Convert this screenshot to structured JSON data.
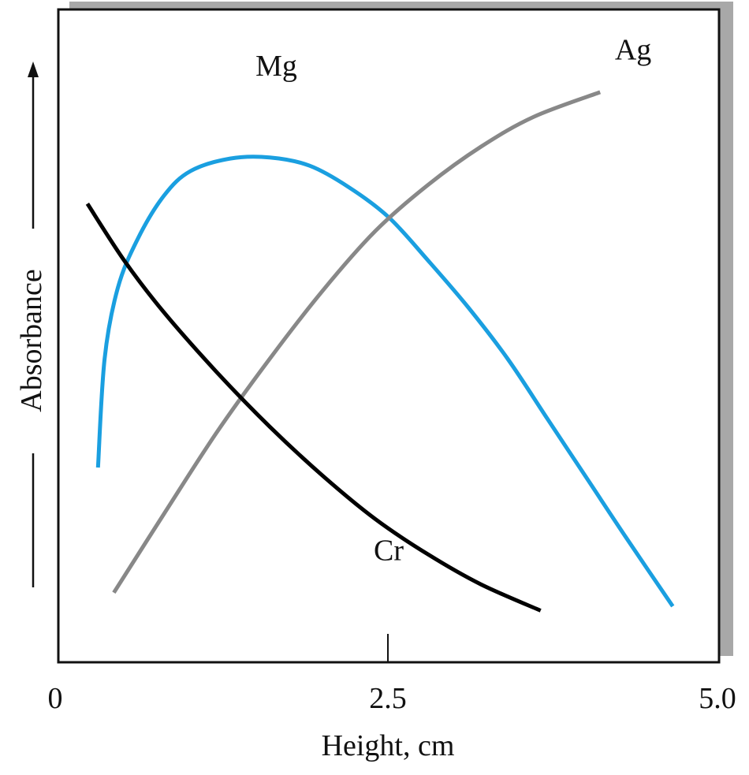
{
  "chart_data": {
    "type": "line",
    "xlabel": "Height, cm",
    "ylabel": "Absorbance",
    "xlim": [
      0,
      5.0
    ],
    "ylim": [
      0,
      1
    ],
    "x_ticks": [
      "0",
      "2.5",
      "5.0"
    ],
    "grid": false,
    "series": [
      {
        "name": "Mg",
        "color": "#1a9fe0",
        "points": [
          [
            0.3,
            0.3
          ],
          [
            0.35,
            0.5
          ],
          [
            0.45,
            0.63
          ],
          [
            0.6,
            0.72
          ],
          [
            0.8,
            0.8
          ],
          [
            1.0,
            0.845
          ],
          [
            1.3,
            0.868
          ],
          [
            1.6,
            0.87
          ],
          [
            1.9,
            0.855
          ],
          [
            2.2,
            0.815
          ],
          [
            2.5,
            0.76
          ],
          [
            2.8,
            0.68
          ],
          [
            3.1,
            0.595
          ],
          [
            3.4,
            0.5
          ],
          [
            3.7,
            0.39
          ],
          [
            4.0,
            0.28
          ],
          [
            4.3,
            0.17
          ],
          [
            4.65,
            0.045
          ]
        ]
      },
      {
        "name": "Ag",
        "color": "#888888",
        "points": [
          [
            0.42,
            0.07
          ],
          [
            0.8,
            0.215
          ],
          [
            1.2,
            0.365
          ],
          [
            1.6,
            0.5
          ],
          [
            2.0,
            0.625
          ],
          [
            2.4,
            0.735
          ],
          [
            2.8,
            0.82
          ],
          [
            3.2,
            0.89
          ],
          [
            3.6,
            0.945
          ],
          [
            4.1,
            0.99
          ]
        ]
      },
      {
        "name": "Cr",
        "color": "#000000",
        "points": [
          [
            0.22,
            0.785
          ],
          [
            0.5,
            0.68
          ],
          [
            0.8,
            0.585
          ],
          [
            1.2,
            0.475
          ],
          [
            1.6,
            0.375
          ],
          [
            2.0,
            0.285
          ],
          [
            2.4,
            0.205
          ],
          [
            2.8,
            0.14
          ],
          [
            3.2,
            0.085
          ],
          [
            3.65,
            0.037
          ]
        ]
      }
    ],
    "labels": [
      {
        "text": "Mg",
        "series": "Mg",
        "x": 1.65,
        "y": 1.02
      },
      {
        "text": "Ag",
        "series": "Ag",
        "x": 4.35,
        "y": 1.05
      },
      {
        "text": "Cr",
        "series": "Cr",
        "x": 2.5,
        "y": 0.13
      }
    ]
  }
}
